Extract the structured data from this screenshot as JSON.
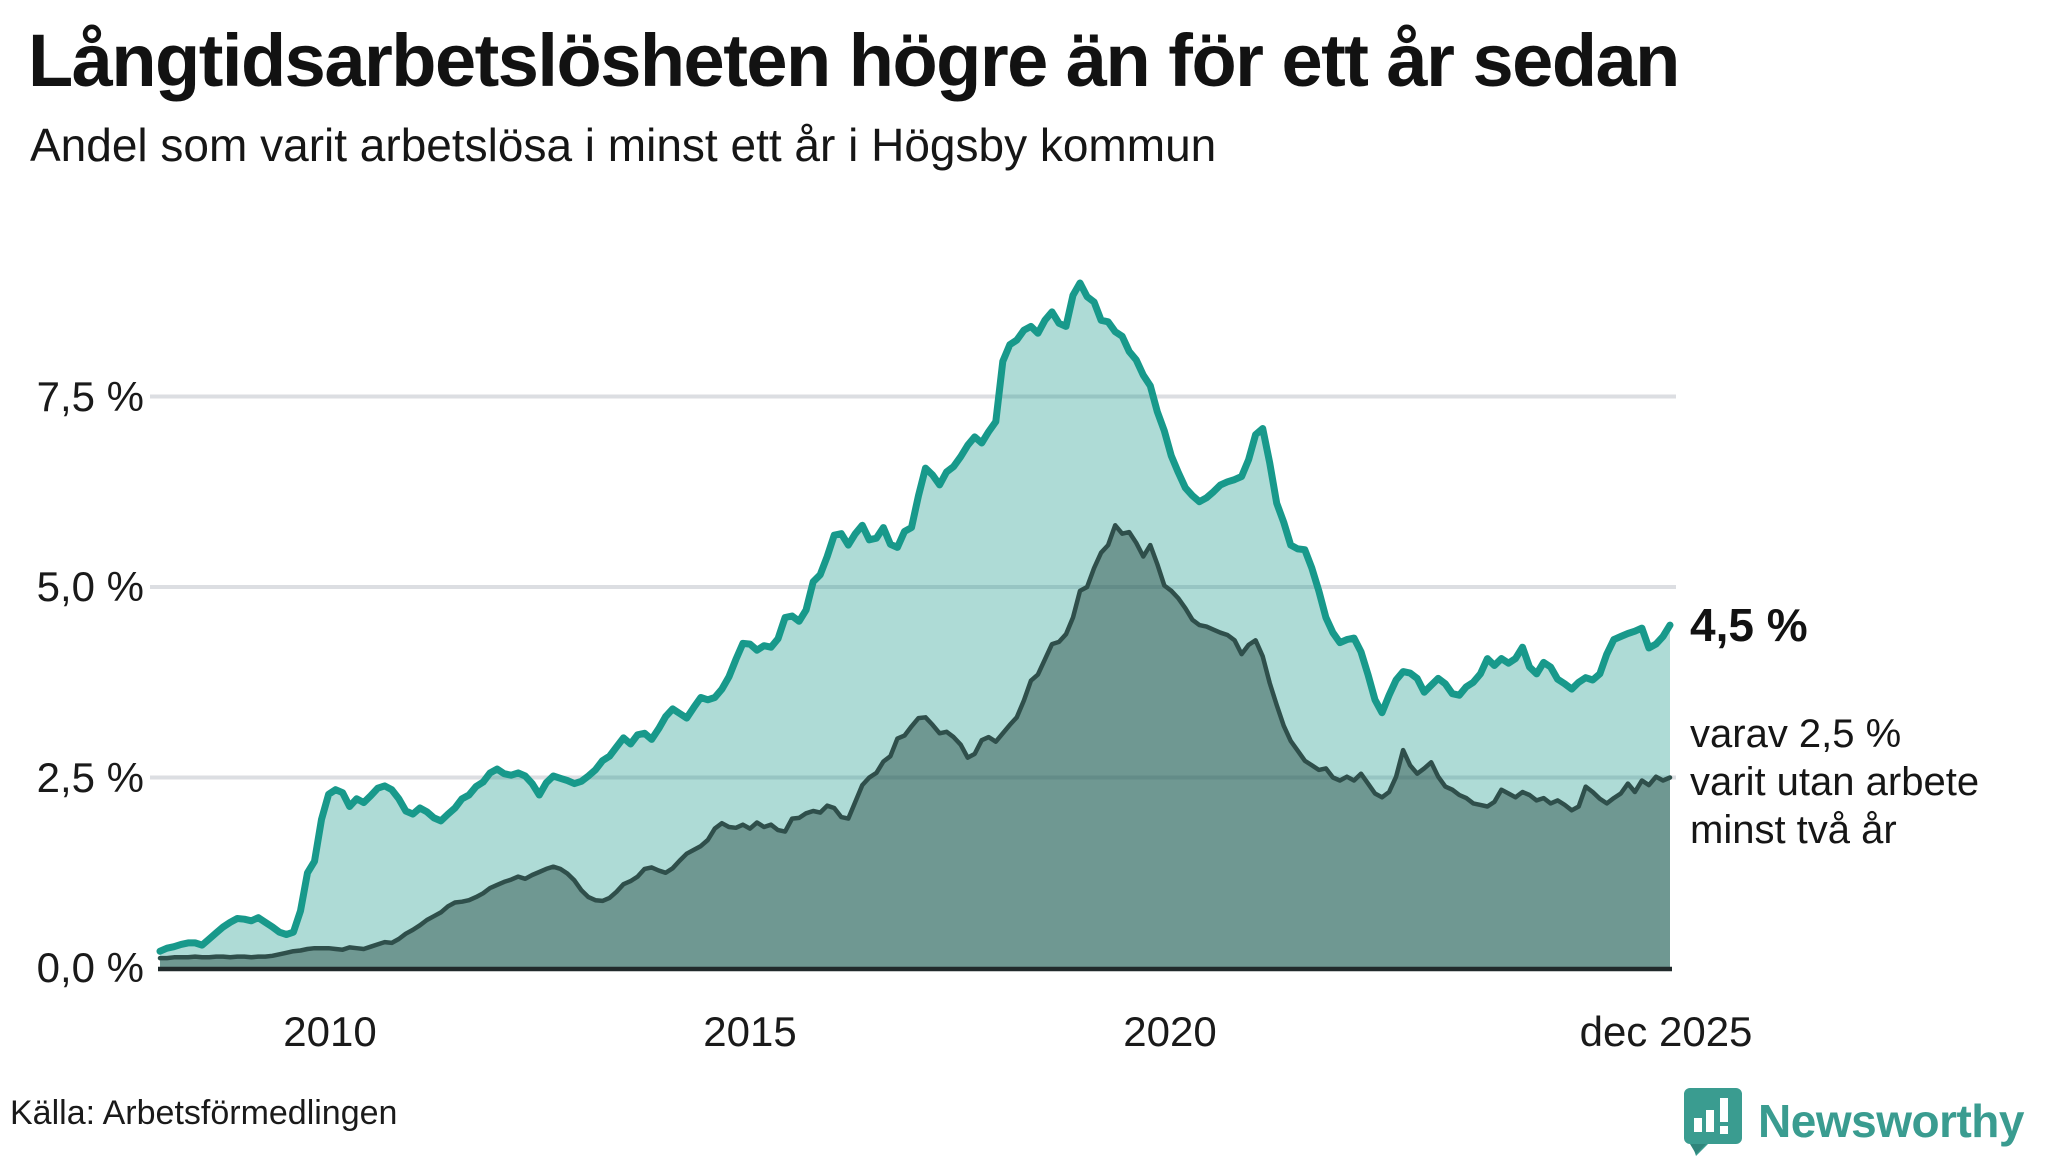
{
  "header": {
    "title": "Långtidsarbetslösheten högre än för ett år sedan",
    "subtitle": "Andel som varit arbetslösa i minst ett år i Högsby kommun"
  },
  "y_axis": {
    "ticks": [
      "7,5 %",
      "5,0 %",
      "2,5 %",
      "0,0 %"
    ]
  },
  "x_axis": {
    "ticks": [
      "2010",
      "2015",
      "2020",
      "dec 2025"
    ]
  },
  "annotations": {
    "end_value_label": "4,5 %",
    "end_note": "varav 2,5 %\nvarit utan arbete\nminst två år"
  },
  "footer": {
    "source": "Källa: Arbetsförmedlingen",
    "brand": "Newsworthy"
  },
  "colors": {
    "accent_teal": "#18998b",
    "light_fill": "#abd8d1",
    "dark_line": "#2f4f4b",
    "dark_fill": "#6f9e97",
    "gridline": "#dcdee2",
    "axis_line": "#212a2b",
    "brand_teal": "#3a9c90"
  },
  "chart_data": {
    "type": "area",
    "title": "Långtidsarbetslösheten högre än för ett år sedan",
    "subtitle": "Andel som varit arbetslösa i minst ett år i Högsby kommun",
    "unit": "%",
    "frequency": "monthly",
    "x_start": "2008-01",
    "x_end": "2025-12",
    "x_tick_years": [
      2010,
      2015,
      2020
    ],
    "x_end_label": "dec 2025",
    "ylim": [
      0,
      9.2
    ],
    "gridlines": [
      2.5,
      5.0,
      7.5
    ],
    "grid_on": true,
    "legend_position": "right-annotations",
    "series": [
      {
        "name": "Andel arbetslösa minst ett år",
        "stroke": "#18998b",
        "stroke_width": 7,
        "fill": "rgba(24,152,138,0.35)",
        "end_value": 4.5,
        "values": [
          0.22,
          0.26,
          0.28,
          0.31,
          0.33,
          0.33,
          0.3,
          0.38,
          0.46,
          0.54,
          0.6,
          0.65,
          0.64,
          0.62,
          0.66,
          0.6,
          0.54,
          0.47,
          0.44,
          0.47,
          0.75,
          1.25,
          1.4,
          1.95,
          2.28,
          2.34,
          2.3,
          2.12,
          2.22,
          2.17,
          2.26,
          2.36,
          2.39,
          2.34,
          2.22,
          2.06,
          2.02,
          2.1,
          2.05,
          1.97,
          1.93,
          2.02,
          2.1,
          2.22,
          2.27,
          2.38,
          2.44,
          2.56,
          2.61,
          2.55,
          2.53,
          2.56,
          2.52,
          2.42,
          2.27,
          2.43,
          2.52,
          2.49,
          2.46,
          2.42,
          2.45,
          2.52,
          2.6,
          2.72,
          2.78,
          2.9,
          3.02,
          2.94,
          3.06,
          3.08,
          3.0,
          3.14,
          3.3,
          3.4,
          3.34,
          3.28,
          3.42,
          3.55,
          3.52,
          3.55,
          3.66,
          3.82,
          4.05,
          4.26,
          4.25,
          4.17,
          4.23,
          4.21,
          4.32,
          4.6,
          4.62,
          4.55,
          4.7,
          5.07,
          5.16,
          5.4,
          5.68,
          5.7,
          5.55,
          5.7,
          5.81,
          5.62,
          5.64,
          5.78,
          5.56,
          5.52,
          5.73,
          5.78,
          6.2,
          6.56,
          6.47,
          6.34,
          6.51,
          6.58,
          6.71,
          6.86,
          6.97,
          6.89,
          7.04,
          7.17,
          7.96,
          8.18,
          8.24,
          8.37,
          8.42,
          8.33,
          8.5,
          8.61,
          8.46,
          8.42,
          8.83,
          8.99,
          8.81,
          8.74,
          8.5,
          8.48,
          8.35,
          8.29,
          8.09,
          7.98,
          7.78,
          7.64,
          7.3,
          7.05,
          6.72,
          6.5,
          6.3,
          6.2,
          6.12,
          6.17,
          6.25,
          6.34,
          6.38,
          6.41,
          6.45,
          6.67,
          7.0,
          7.08,
          6.63,
          6.1,
          5.85,
          5.55,
          5.5,
          5.49,
          5.25,
          4.95,
          4.6,
          4.4,
          4.27,
          4.31,
          4.33,
          4.15,
          3.85,
          3.52,
          3.35,
          3.58,
          3.78,
          3.89,
          3.87,
          3.8,
          3.62,
          3.71,
          3.8,
          3.73,
          3.6,
          3.58,
          3.69,
          3.75,
          3.86,
          4.06,
          3.97,
          4.06,
          4.0,
          4.06,
          4.21,
          3.95,
          3.86,
          4.01,
          3.95,
          3.79,
          3.73,
          3.66,
          3.75,
          3.81,
          3.78,
          3.86,
          4.12,
          4.31,
          4.35,
          4.39,
          4.42,
          4.46,
          4.2,
          4.25,
          4.35,
          4.5
        ]
      },
      {
        "name": "varav utan arbete minst två år",
        "stroke": "#2f4f4b",
        "stroke_width": 4.5,
        "fill": "rgba(36,70,65,0.45)",
        "end_value": 2.5,
        "values": [
          0.13,
          0.13,
          0.14,
          0.14,
          0.14,
          0.15,
          0.14,
          0.14,
          0.15,
          0.15,
          0.14,
          0.15,
          0.15,
          0.14,
          0.15,
          0.15,
          0.16,
          0.18,
          0.2,
          0.22,
          0.23,
          0.25,
          0.26,
          0.26,
          0.26,
          0.25,
          0.24,
          0.27,
          0.26,
          0.25,
          0.28,
          0.31,
          0.34,
          0.33,
          0.38,
          0.45,
          0.5,
          0.56,
          0.63,
          0.68,
          0.73,
          0.81,
          0.86,
          0.87,
          0.89,
          0.93,
          0.98,
          1.05,
          1.09,
          1.13,
          1.16,
          1.2,
          1.17,
          1.22,
          1.26,
          1.3,
          1.33,
          1.3,
          1.24,
          1.15,
          1.02,
          0.93,
          0.89,
          0.88,
          0.92,
          1.0,
          1.1,
          1.14,
          1.2,
          1.3,
          1.32,
          1.28,
          1.25,
          1.31,
          1.41,
          1.5,
          1.55,
          1.6,
          1.68,
          1.83,
          1.9,
          1.85,
          1.84,
          1.88,
          1.83,
          1.91,
          1.85,
          1.88,
          1.81,
          1.79,
          1.96,
          1.97,
          2.03,
          2.06,
          2.04,
          2.13,
          2.1,
          1.98,
          1.96,
          2.18,
          2.4,
          2.5,
          2.56,
          2.71,
          2.78,
          3.01,
          3.05,
          3.17,
          3.28,
          3.29,
          3.19,
          3.08,
          3.1,
          3.03,
          2.93,
          2.76,
          2.81,
          2.99,
          3.03,
          2.97,
          3.08,
          3.19,
          3.29,
          3.51,
          3.77,
          3.85,
          4.05,
          4.25,
          4.28,
          4.38,
          4.6,
          4.95,
          5.0,
          5.25,
          5.45,
          5.55,
          5.81,
          5.7,
          5.72,
          5.58,
          5.4,
          5.55,
          5.3,
          5.02,
          4.95,
          4.85,
          4.72,
          4.57,
          4.5,
          4.48,
          4.44,
          4.4,
          4.37,
          4.3,
          4.12,
          4.24,
          4.3,
          4.09,
          3.74,
          3.45,
          3.18,
          2.98,
          2.85,
          2.72,
          2.66,
          2.6,
          2.62,
          2.5,
          2.46,
          2.51,
          2.46,
          2.55,
          2.42,
          2.29,
          2.24,
          2.31,
          2.51,
          2.86,
          2.66,
          2.55,
          2.62,
          2.7,
          2.51,
          2.38,
          2.34,
          2.27,
          2.23,
          2.16,
          2.14,
          2.12,
          2.18,
          2.34,
          2.29,
          2.24,
          2.31,
          2.27,
          2.2,
          2.23,
          2.16,
          2.2,
          2.14,
          2.07,
          2.12,
          2.38,
          2.31,
          2.22,
          2.16,
          2.23,
          2.29,
          2.42,
          2.31,
          2.46,
          2.4,
          2.51,
          2.46,
          2.5
        ]
      }
    ]
  }
}
